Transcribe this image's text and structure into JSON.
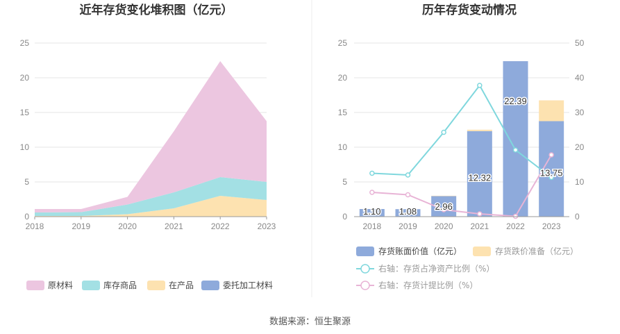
{
  "source_text": "数据来源：恒生聚源",
  "chart_data": [
    {
      "type": "area",
      "stacked": true,
      "title": "近年存货变化堆积图（亿元）",
      "x": [
        "2018",
        "2019",
        "2020",
        "2021",
        "2022",
        "2023"
      ],
      "ylim": [
        0,
        25
      ],
      "yticks": [
        "0",
        "5",
        "10",
        "15",
        "20",
        "25"
      ],
      "grid": true,
      "legend_position": "bottom",
      "series": [
        {
          "name": "委托加工材料",
          "color": "#8eaadb",
          "values": [
            0,
            0,
            0,
            0,
            0,
            0
          ]
        },
        {
          "name": "在产品",
          "color": "#fde2b0",
          "values": [
            0.1,
            0.1,
            0.35,
            1.2,
            3.0,
            2.4
          ]
        },
        {
          "name": "库存商品",
          "color": "#a3e0e4",
          "values": [
            0.5,
            0.55,
            1.4,
            2.3,
            2.7,
            2.6
          ]
        },
        {
          "name": "原材料",
          "color": "#ecc6e0",
          "values": [
            0.5,
            0.45,
            1.1,
            8.8,
            16.7,
            8.75
          ]
        }
      ]
    },
    {
      "type": "bar",
      "title": "历年存货变动情况",
      "categories": [
        "2018",
        "2019",
        "2020",
        "2021",
        "2022",
        "2023"
      ],
      "ylim": [
        0,
        25
      ],
      "yticks": [
        "0",
        "5",
        "10",
        "15",
        "20",
        "25"
      ],
      "y2lim": [
        0,
        50
      ],
      "y2ticks": [
        "0",
        "10",
        "20",
        "30",
        "40",
        "50"
      ],
      "grid": true,
      "legend_position": "bottom",
      "series": [
        {
          "name": "存货账面价值（亿元）",
          "kind": "bar",
          "color": "#8eaadb",
          "values": [
            1.1,
            1.08,
            2.96,
            12.32,
            22.39,
            13.75
          ],
          "labels": [
            "1.10",
            "1.08",
            "2.96",
            "12.32",
            "22.39",
            "13.75"
          ]
        },
        {
          "name": "存货跌价准备（亿元）",
          "kind": "bar",
          "color": "#fde2b0",
          "values": [
            0,
            0,
            0.05,
            0.2,
            0,
            3.0
          ]
        },
        {
          "name": "右轴：存货占净资产比例（%）",
          "kind": "line",
          "axis": "right",
          "color": "#7fd7dd",
          "values": [
            12.5,
            12.0,
            24.3,
            37.8,
            19.2,
            11.3
          ]
        },
        {
          "name": "右轴：存货计提比例（%）",
          "kind": "line",
          "axis": "right",
          "color": "#e8b4d6",
          "values": [
            7.0,
            6.3,
            2.0,
            0.8,
            0.1,
            17.8
          ]
        }
      ]
    }
  ]
}
